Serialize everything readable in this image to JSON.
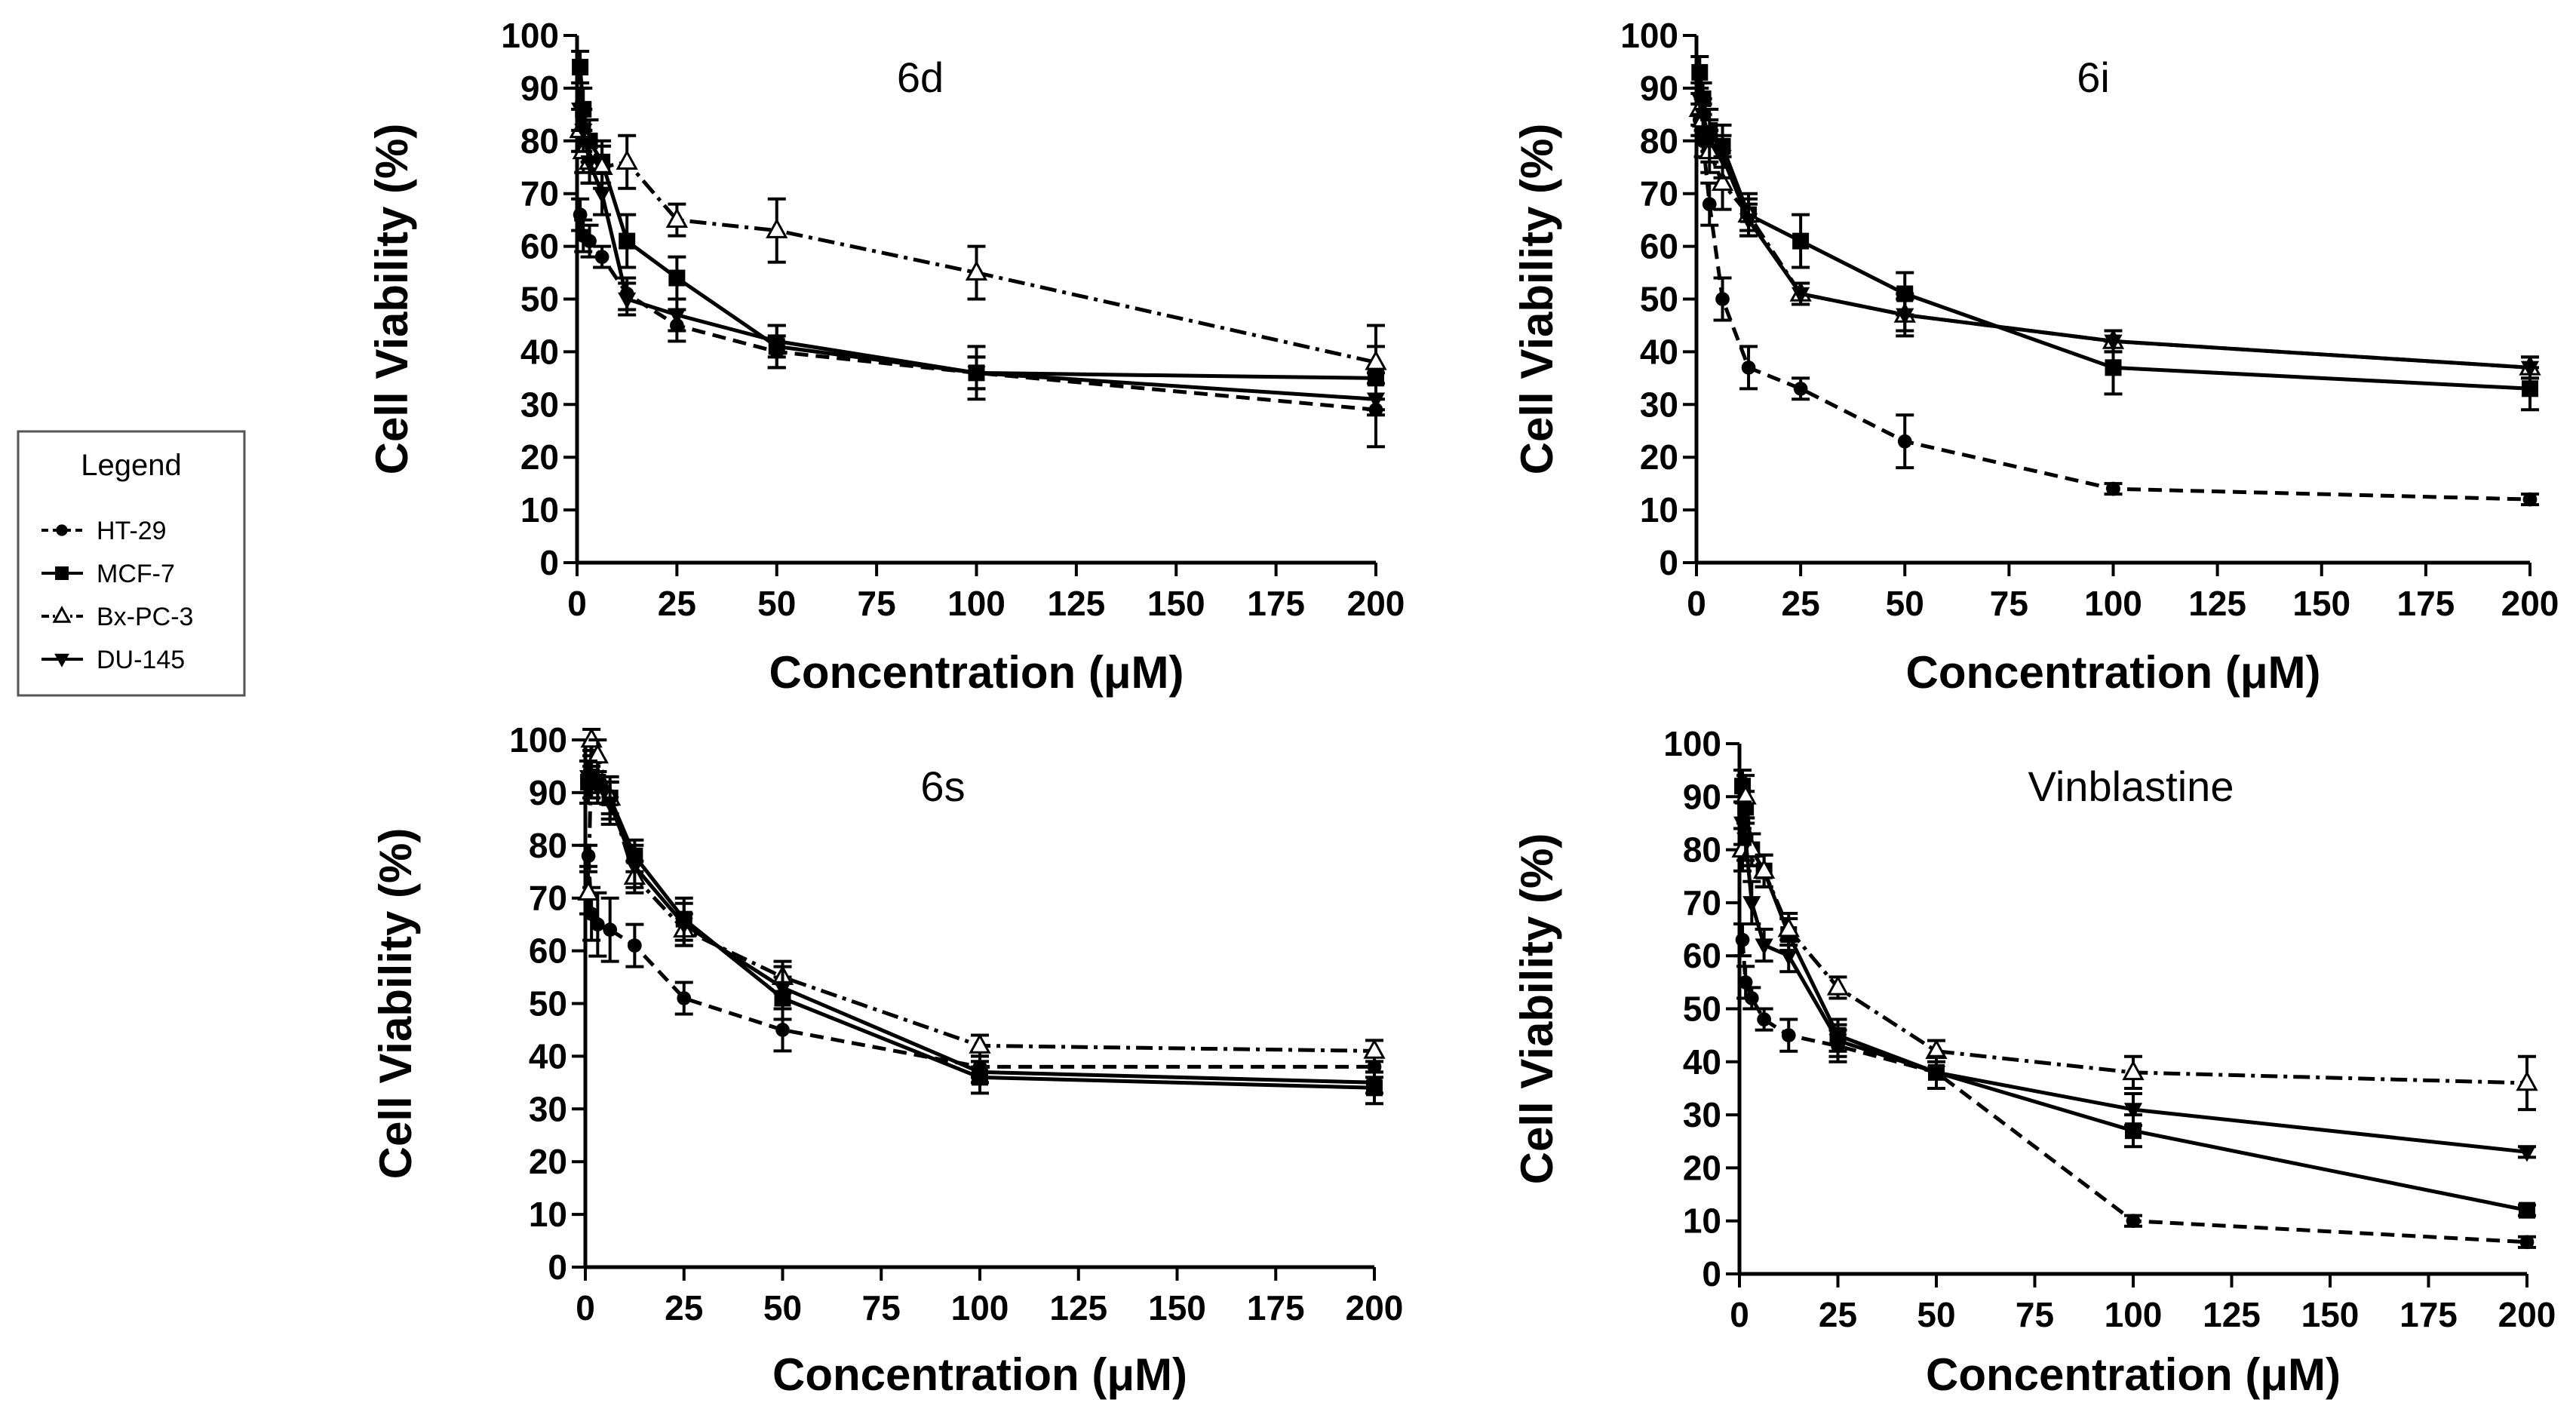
{
  "legend": {
    "title": "Legend",
    "entries": [
      "HT-29",
      "MCF-7",
      "Bx-PC-3",
      "DU-145"
    ]
  },
  "chart_data": [
    {
      "type": "line",
      "title": "6d",
      "xlabel": "Concentration (μM)",
      "ylabel": "Cell Viability (%)",
      "xlim": [
        0,
        200
      ],
      "ylim": [
        0,
        100
      ],
      "xticks": [
        "0",
        "25",
        "50",
        "75",
        "100",
        "125",
        "150",
        "175",
        "200"
      ],
      "yticks": [
        "0",
        "10",
        "20",
        "30",
        "40",
        "50",
        "60",
        "70",
        "80",
        "90",
        "100"
      ],
      "x": [
        0.78,
        1.56,
        3.125,
        6.25,
        12.5,
        25,
        50,
        100,
        200
      ],
      "series": [
        {
          "name": "HT-29",
          "values": [
            66,
            62,
            61,
            58,
            51,
            45,
            40,
            36,
            29
          ],
          "errors": [
            3,
            3,
            3,
            2,
            3,
            3,
            3,
            3,
            7
          ]
        },
        {
          "name": "MCF-7",
          "values": [
            94,
            86,
            80,
            76,
            61,
            54,
            41,
            36,
            35
          ],
          "errors": [
            3,
            4,
            4,
            4,
            5,
            4,
            4,
            5,
            6
          ]
        },
        {
          "name": "Bx-PC-3",
          "values": [
            82,
            78,
            76,
            75,
            76,
            65,
            63,
            55,
            38
          ],
          "errors": [
            4,
            4,
            4,
            4,
            5,
            3,
            6,
            5,
            7
          ]
        },
        {
          "name": "DU-145",
          "values": [
            86,
            82,
            76,
            70,
            50,
            47,
            42,
            36,
            31
          ],
          "errors": [
            4,
            4,
            4,
            4,
            3,
            3,
            3,
            3,
            3
          ]
        }
      ]
    },
    {
      "type": "line",
      "title": "6i",
      "xlabel": "Concentration (μM)",
      "ylabel": "Cell Viability (%)",
      "xlim": [
        0,
        200
      ],
      "ylim": [
        0,
        100
      ],
      "xticks": [
        "0",
        "25",
        "50",
        "75",
        "100",
        "125",
        "150",
        "175",
        "200"
      ],
      "yticks": [
        "0",
        "10",
        "20",
        "30",
        "40",
        "50",
        "60",
        "70",
        "80",
        "90",
        "100"
      ],
      "x": [
        0.78,
        1.56,
        3.125,
        6.25,
        12.5,
        25,
        50,
        100,
        200
      ],
      "series": [
        {
          "name": "HT-29",
          "values": [
            84,
            80,
            68,
            50,
            37,
            33,
            23,
            14,
            12
          ],
          "errors": [
            3,
            3,
            4,
            4,
            4,
            2,
            5,
            1,
            1
          ]
        },
        {
          "name": "MCF-7",
          "values": [
            93,
            88,
            82,
            79,
            66,
            61,
            51,
            37,
            33
          ],
          "errors": [
            3,
            3,
            4,
            4,
            4,
            5,
            4,
            5,
            4
          ]
        },
        {
          "name": "Bx-PC-3",
          "values": [
            86,
            84,
            78,
            72,
            66,
            51,
            47,
            42,
            37
          ],
          "errors": [
            3,
            3,
            4,
            5,
            3,
            2,
            3,
            2,
            2
          ]
        },
        {
          "name": "DU-145",
          "values": [
            88,
            85,
            80,
            77,
            65,
            51,
            47,
            42,
            37
          ],
          "errors": [
            3,
            3,
            4,
            4,
            3,
            2,
            4,
            2,
            2
          ]
        }
      ]
    },
    {
      "type": "line",
      "title": "6s",
      "xlabel": "Concentration (μM)",
      "ylabel": "Cell Viability (%)",
      "xlim": [
        0,
        200
      ],
      "ylim": [
        0,
        100
      ],
      "xticks": [
        "0",
        "25",
        "50",
        "75",
        "100",
        "125",
        "150",
        "175",
        "200"
      ],
      "yticks": [
        "0",
        "10",
        "20",
        "30",
        "40",
        "50",
        "60",
        "70",
        "80",
        "90",
        "100"
      ],
      "x": [
        0.78,
        1.56,
        3.125,
        6.25,
        12.5,
        25,
        50,
        100,
        200
      ],
      "series": [
        {
          "name": "HT-29",
          "values": [
            78,
            67,
            65,
            64,
            61,
            51,
            45,
            38,
            38
          ],
          "errors": [
            2,
            5,
            6,
            6,
            4,
            3,
            4,
            2,
            2
          ]
        },
        {
          "name": "MCF-7",
          "values": [
            92,
            93,
            92,
            89,
            78,
            66,
            51,
            36,
            34
          ],
          "errors": [
            4,
            4,
            4,
            4,
            3,
            4,
            4,
            3,
            3
          ]
        },
        {
          "name": "Bx-PC-3",
          "values": [
            71,
            100,
            97,
            89,
            74,
            64,
            55,
            42,
            41
          ],
          "errors": [
            4,
            2,
            3,
            3,
            3,
            3,
            3,
            2,
            2
          ]
        },
        {
          "name": "DU-145",
          "values": [
            93,
            92,
            91,
            88,
            76,
            65,
            53,
            37,
            35
          ],
          "errors": [
            3,
            3,
            3,
            4,
            4,
            4,
            4,
            2,
            2
          ]
        }
      ]
    },
    {
      "type": "line",
      "title": "Vinblastine",
      "xlabel": "Concentration (μM)",
      "ylabel": "Cell Viability (%)",
      "xlim": [
        0,
        200
      ],
      "ylim": [
        0,
        100
      ],
      "xticks": [
        "0",
        "25",
        "50",
        "75",
        "100",
        "125",
        "150",
        "175",
        "200"
      ],
      "yticks": [
        "0",
        "10",
        "20",
        "30",
        "40",
        "50",
        "60",
        "70",
        "80",
        "90",
        "100"
      ],
      "x": [
        0.78,
        1.56,
        3.125,
        6.25,
        12.5,
        25,
        50,
        100,
        200
      ],
      "series": [
        {
          "name": "HT-29",
          "values": [
            63,
            55,
            52,
            48,
            45,
            43,
            38,
            10,
            6
          ],
          "errors": [
            3,
            3,
            2,
            2,
            3,
            3,
            3,
            1,
            1
          ]
        },
        {
          "name": "MCF-7",
          "values": [
            92,
            88,
            80,
            76,
            64,
            45,
            38,
            27,
            12
          ],
          "errors": [
            3,
            3,
            3,
            3,
            3,
            3,
            3,
            3,
            1
          ]
        },
        {
          "name": "Bx-PC-3",
          "values": [
            80,
            90,
            80,
            76,
            65,
            54,
            42,
            38,
            36
          ],
          "errors": [
            4,
            4,
            3,
            3,
            3,
            2,
            2,
            3,
            5
          ]
        },
        {
          "name": "DU-145",
          "values": [
            85,
            82,
            70,
            62,
            60,
            44,
            38,
            31,
            23
          ],
          "errors": [
            4,
            4,
            4,
            3,
            3,
            3,
            3,
            3,
            1
          ]
        }
      ]
    }
  ]
}
